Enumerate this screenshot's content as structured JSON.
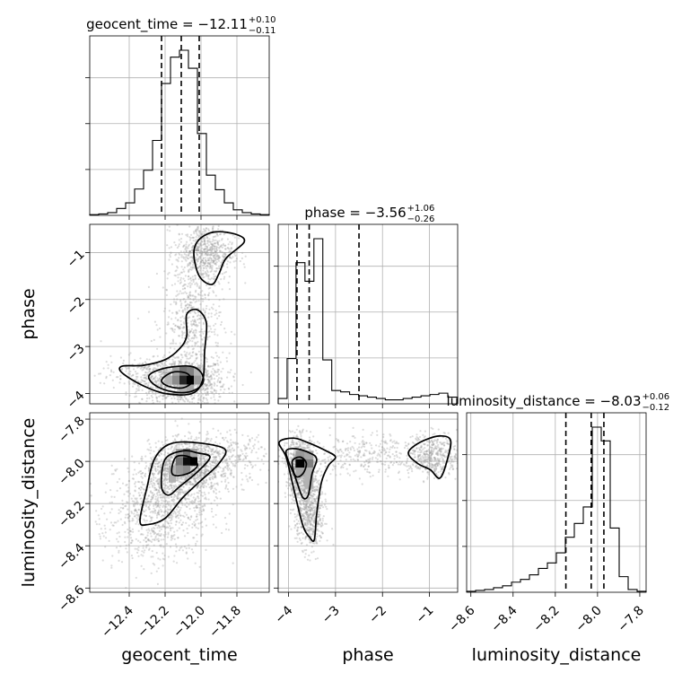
{
  "chart_data": {
    "type": "corner",
    "parameters": [
      "geocent_time",
      "phase",
      "luminosity_distance"
    ],
    "axis_labels": {
      "geocent_time": "geocent_time",
      "phase": "phase",
      "luminosity_distance": "luminosity_distance"
    },
    "ranges": {
      "geocent_time": [
        -12.62,
        -11.62
      ],
      "phase": [
        -4.22,
        -0.4
      ],
      "luminosity_distance": [
        -8.62,
        -7.77
      ]
    },
    "ticks": {
      "geocent_time": {
        "values": [
          -12.4,
          -12.2,
          -12.0,
          -11.8
        ],
        "labels": [
          "−12.4",
          "−12.2",
          "−12.0",
          "−11.8"
        ]
      },
      "phase": {
        "values": [
          -4,
          -3,
          -2,
          -1
        ],
        "labels": [
          "−4",
          "−3",
          "−2",
          "−1"
        ]
      },
      "luminosity_distance": {
        "values": [
          -8.6,
          -8.4,
          -8.2,
          -8.0,
          -7.8
        ],
        "labels": [
          "−8.6",
          "−8.4",
          "−8.2",
          "−8.0",
          "−7.8"
        ]
      }
    },
    "marginals": [
      {
        "parameter": "geocent_time",
        "title_name": "geocent_time",
        "median_text": "−12.11",
        "plus_text": "+0.10",
        "minus_text": "−0.11",
        "quantiles": [
          -12.22,
          -12.11,
          -12.01
        ],
        "bin_edges": [
          -12.62,
          -12.57,
          -12.52,
          -12.47,
          -12.42,
          -12.37,
          -12.32,
          -12.27,
          -12.22,
          -12.17,
          -12.12,
          -12.07,
          -12.02,
          -11.97,
          -11.92,
          -11.87,
          -11.82,
          -11.77,
          -11.72,
          -11.67,
          -11.62
        ],
        "counts": [
          1,
          2,
          4,
          10,
          18,
          38,
          65,
          108,
          190,
          228,
          238,
          212,
          118,
          58,
          37,
          18,
          8,
          4,
          2,
          1
        ]
      },
      {
        "parameter": "phase",
        "title_name": "phase",
        "median_text": "−3.56",
        "plus_text": "+1.06",
        "minus_text": "−0.26",
        "quantiles": [
          -3.82,
          -3.56,
          -2.5
        ],
        "bin_edges": [
          -4.22,
          -4.03,
          -3.84,
          -3.65,
          -3.46,
          -3.27,
          -3.08,
          -2.89,
          -2.7,
          -2.51,
          -2.32,
          -2.13,
          -1.94,
          -1.75,
          -1.56,
          -1.37,
          -1.18,
          -0.99,
          -0.8,
          -0.61,
          -0.4
        ],
        "counts": [
          4,
          34,
          106,
          92,
          124,
          33,
          10,
          9,
          7,
          6,
          5,
          4,
          3,
          3,
          4,
          5,
          6,
          7,
          8,
          5
        ]
      },
      {
        "parameter": "luminosity_distance",
        "title_name": "luminosity_distance",
        "median_text": "−8.03",
        "plus_text": "+0.06",
        "minus_text": "−0.12",
        "quantiles": [
          -8.15,
          -8.03,
          -7.97
        ],
        "bin_edges": [
          -8.62,
          -8.5775,
          -8.535,
          -8.4925,
          -8.45,
          -8.4075,
          -8.365,
          -8.3225,
          -8.28,
          -8.2375,
          -8.195,
          -8.1525,
          -8.11,
          -8.0675,
          -8.025,
          -7.9825,
          -7.94,
          -7.8975,
          -7.855,
          -7.8125,
          -7.77
        ],
        "counts": [
          1,
          2,
          3,
          5,
          7,
          11,
          14,
          19,
          26,
          32,
          43,
          60,
          75,
          93,
          180,
          165,
          70,
          17,
          3,
          1
        ]
      }
    ],
    "joint": [
      {
        "x": "geocent_time",
        "y": "phase",
        "clusters": [
          {
            "cx": -12.1,
            "cy": -3.75,
            "sx": 0.12,
            "sy": 0.25,
            "n": 950
          },
          {
            "cx": -12.05,
            "cy": -2.5,
            "sx": 0.08,
            "sy": 0.6,
            "n": 500
          },
          {
            "cx": -11.98,
            "cy": -1.0,
            "sx": 0.08,
            "sy": 0.3,
            "n": 650
          },
          {
            "cx": -12.32,
            "cy": -3.6,
            "sx": 0.12,
            "sy": 0.2,
            "n": 200
          }
        ],
        "density_cells": [
          {
            "x": -12.16,
            "y": -3.62,
            "w": 0.04,
            "h": 0.19,
            "level": 0.35
          },
          {
            "x": -12.12,
            "y": -3.62,
            "w": 0.04,
            "h": 0.19,
            "level": 0.55
          },
          {
            "x": -12.08,
            "y": -3.62,
            "w": 0.04,
            "h": 0.19,
            "level": 0.5
          },
          {
            "x": -12.04,
            "y": -3.62,
            "w": 0.04,
            "h": 0.19,
            "level": 0.3
          },
          {
            "x": -12.2,
            "y": -3.81,
            "w": 0.04,
            "h": 0.19,
            "level": 0.3
          },
          {
            "x": -12.16,
            "y": -3.81,
            "w": 0.04,
            "h": 0.19,
            "level": 0.45
          },
          {
            "x": -12.12,
            "y": -3.81,
            "w": 0.04,
            "h": 0.19,
            "level": 0.85
          },
          {
            "x": -12.08,
            "y": -3.81,
            "w": 0.04,
            "h": 0.19,
            "level": 1.0
          },
          {
            "x": -12.04,
            "y": -3.81,
            "w": 0.04,
            "h": 0.19,
            "level": 0.4
          },
          {
            "x": -12.12,
            "y": -4.0,
            "w": 0.04,
            "h": 0.19,
            "level": 0.3
          },
          {
            "x": -12.08,
            "y": -4.0,
            "w": 0.04,
            "h": 0.19,
            "level": 0.35
          }
        ],
        "contours": [
          [
            [
              -12.44,
              -3.42
            ],
            [
              -12.32,
              -3.4
            ],
            [
              -12.2,
              -3.28
            ],
            [
              -12.12,
              -3.05
            ],
            [
              -12.08,
              -2.78
            ],
            [
              -12.08,
              -2.32
            ],
            [
              -12.02,
              -2.22
            ],
            [
              -11.97,
              -2.5
            ],
            [
              -11.98,
              -3.1
            ],
            [
              -11.99,
              -3.7
            ],
            [
              -12.05,
              -4.0
            ],
            [
              -12.2,
              -4.0
            ],
            [
              -12.33,
              -3.82
            ],
            [
              -12.44,
              -3.56
            ]
          ],
          [
            [
              -12.29,
              -3.62
            ],
            [
              -12.2,
              -3.46
            ],
            [
              -12.06,
              -3.42
            ],
            [
              -12.0,
              -3.55
            ],
            [
              -11.99,
              -3.78
            ],
            [
              -12.05,
              -3.95
            ],
            [
              -12.15,
              -3.97
            ],
            [
              -12.25,
              -3.84
            ]
          ],
          [
            [
              -12.22,
              -3.72
            ],
            [
              -12.16,
              -3.55
            ],
            [
              -12.08,
              -3.57
            ],
            [
              -12.05,
              -3.75
            ],
            [
              -12.1,
              -3.88
            ],
            [
              -12.18,
              -3.85
            ]
          ],
          [
            [
              -12.01,
              -0.72
            ],
            [
              -11.92,
              -0.56
            ],
            [
              -11.8,
              -0.62
            ],
            [
              -11.76,
              -0.78
            ],
            [
              -11.86,
              -1.12
            ],
            [
              -11.9,
              -1.45
            ],
            [
              -11.94,
              -1.68
            ],
            [
              -12.01,
              -1.5
            ],
            [
              -12.04,
              -1.02
            ]
          ]
        ]
      },
      {
        "x": "geocent_time",
        "y": "luminosity_distance",
        "clusters": [
          {
            "cx": -12.09,
            "cy": -8.03,
            "sx": 0.1,
            "sy": 0.06,
            "n": 900
          },
          {
            "cx": -12.18,
            "cy": -8.18,
            "sx": 0.14,
            "sy": 0.1,
            "n": 700
          },
          {
            "cx": -11.92,
            "cy": -7.98,
            "sx": 0.15,
            "sy": 0.06,
            "n": 400
          },
          {
            "cx": -12.3,
            "cy": -8.32,
            "sx": 0.15,
            "sy": 0.1,
            "n": 300
          }
        ],
        "density_cells": [
          {
            "x": -12.14,
            "y": -7.98,
            "w": 0.04,
            "h": 0.04,
            "level": 0.35
          },
          {
            "x": -12.1,
            "y": -7.98,
            "w": 0.04,
            "h": 0.04,
            "level": 0.55
          },
          {
            "x": -12.06,
            "y": -7.98,
            "w": 0.04,
            "h": 0.04,
            "level": 0.35
          },
          {
            "x": -12.14,
            "y": -8.02,
            "w": 0.04,
            "h": 0.04,
            "level": 0.55
          },
          {
            "x": -12.1,
            "y": -8.02,
            "w": 0.04,
            "h": 0.04,
            "level": 0.95
          },
          {
            "x": -12.06,
            "y": -8.02,
            "w": 0.04,
            "h": 0.04,
            "level": 1.0
          },
          {
            "x": -12.18,
            "y": -8.06,
            "w": 0.04,
            "h": 0.04,
            "level": 0.3
          },
          {
            "x": -12.14,
            "y": -8.06,
            "w": 0.04,
            "h": 0.04,
            "level": 0.4
          },
          {
            "x": -12.1,
            "y": -8.06,
            "w": 0.04,
            "h": 0.04,
            "level": 0.45
          },
          {
            "x": -12.18,
            "y": -8.1,
            "w": 0.04,
            "h": 0.04,
            "level": 0.3
          }
        ],
        "contours": [
          [
            [
              -12.34,
              -8.28
            ],
            [
              -12.3,
              -8.12
            ],
            [
              -12.26,
              -7.99
            ],
            [
              -12.18,
              -7.92
            ],
            [
              -12.05,
              -7.91
            ],
            [
              -11.87,
              -7.94
            ],
            [
              -11.9,
              -8.01
            ],
            [
              -12.0,
              -8.09
            ],
            [
              -12.1,
              -8.17
            ],
            [
              -12.2,
              -8.27
            ],
            [
              -12.3,
              -8.3
            ]
          ],
          [
            [
              -12.22,
              -8.12
            ],
            [
              -12.2,
              -7.99
            ],
            [
              -12.1,
              -7.95
            ],
            [
              -12.02,
              -7.96
            ],
            [
              -11.95,
              -7.98
            ],
            [
              -12.02,
              -8.05
            ],
            [
              -12.12,
              -8.12
            ],
            [
              -12.18,
              -8.16
            ]
          ],
          [
            [
              -12.16,
              -8.06
            ],
            [
              -12.14,
              -7.98
            ],
            [
              -12.06,
              -7.98
            ],
            [
              -12.02,
              -8.02
            ],
            [
              -12.08,
              -8.06
            ]
          ]
        ]
      },
      {
        "x": "phase",
        "y": "luminosity_distance",
        "clusters": [
          {
            "cx": -3.75,
            "cy": -8.03,
            "sx": 0.15,
            "sy": 0.07,
            "n": 700
          },
          {
            "cx": -3.6,
            "cy": -8.18,
            "sx": 0.15,
            "sy": 0.1,
            "n": 500
          },
          {
            "cx": -2.3,
            "cy": -7.97,
            "sx": 0.8,
            "sy": 0.05,
            "n": 350
          },
          {
            "cx": -0.9,
            "cy": -7.97,
            "sx": 0.25,
            "sy": 0.05,
            "n": 400
          },
          {
            "cx": -3.5,
            "cy": -8.3,
            "sx": 0.15,
            "sy": 0.07,
            "n": 200
          }
        ],
        "density_cells": [
          {
            "x": -3.85,
            "y": -7.99,
            "w": 0.19,
            "h": 0.04,
            "level": 0.4
          },
          {
            "x": -3.66,
            "y": -7.99,
            "w": 0.19,
            "h": 0.04,
            "level": 0.35
          },
          {
            "x": -3.85,
            "y": -8.03,
            "w": 0.19,
            "h": 0.04,
            "level": 1.0
          },
          {
            "x": -3.66,
            "y": -8.03,
            "w": 0.19,
            "h": 0.04,
            "level": 0.5
          },
          {
            "x": -3.85,
            "y": -8.07,
            "w": 0.19,
            "h": 0.04,
            "level": 0.35
          },
          {
            "x": -3.66,
            "y": -8.07,
            "w": 0.19,
            "h": 0.04,
            "level": 0.3
          },
          {
            "x": -3.66,
            "y": -8.13,
            "w": 0.19,
            "h": 0.06,
            "level": 0.3
          }
        ],
        "contours": [
          [
            [
              -4.2,
              -7.91
            ],
            [
              -3.9,
              -7.89
            ],
            [
              -3.6,
              -7.91
            ],
            [
              -3.2,
              -7.95
            ],
            [
              -3.0,
              -7.98
            ],
            [
              -3.15,
              -8.02
            ],
            [
              -3.3,
              -8.1
            ],
            [
              -3.4,
              -8.25
            ],
            [
              -3.45,
              -8.37
            ],
            [
              -3.55,
              -8.36
            ],
            [
              -3.7,
              -8.3
            ],
            [
              -3.9,
              -8.12
            ],
            [
              -4.05,
              -7.98
            ]
          ],
          [
            [
              -4.05,
              -7.95
            ],
            [
              -3.85,
              -7.94
            ],
            [
              -3.55,
              -7.96
            ],
            [
              -3.4,
              -7.99
            ],
            [
              -3.5,
              -8.06
            ],
            [
              -3.58,
              -8.16
            ],
            [
              -3.7,
              -8.17
            ],
            [
              -3.85,
              -8.08
            ],
            [
              -4.0,
              -8.0
            ]
          ],
          [
            [
              -3.92,
              -8.0
            ],
            [
              -3.75,
              -7.98
            ],
            [
              -3.62,
              -8.01
            ],
            [
              -3.7,
              -8.06
            ],
            [
              -3.85,
              -8.07
            ]
          ],
          [
            [
              -1.45,
              -7.96
            ],
            [
              -1.2,
              -7.91
            ],
            [
              -0.8,
              -7.88
            ],
            [
              -0.55,
              -7.9
            ],
            [
              -0.63,
              -8.0
            ],
            [
              -0.78,
              -8.08
            ],
            [
              -0.98,
              -8.04
            ],
            [
              -1.25,
              -8.01
            ]
          ]
        ]
      }
    ]
  }
}
